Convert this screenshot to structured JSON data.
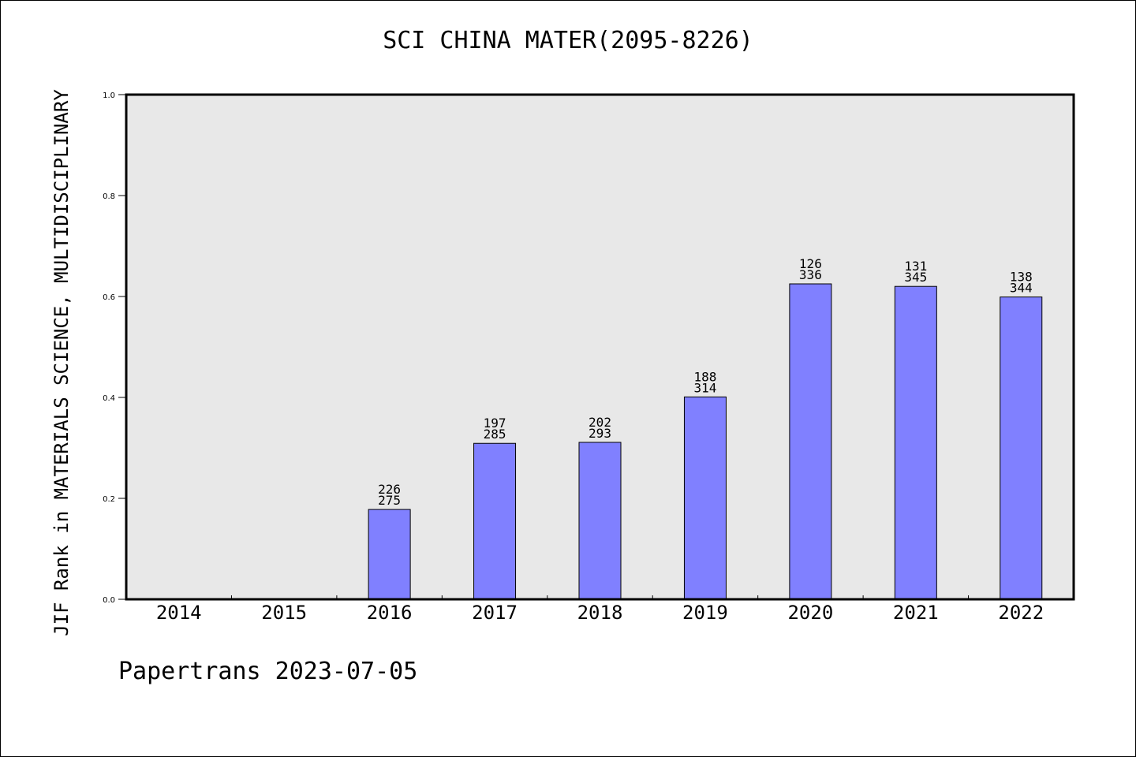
{
  "chart_data": {
    "type": "bar",
    "title": "SCI CHINA MATER(2095-8226)",
    "ylabel": "JIF Rank in MATERIALS SCIENCE, MULTIDISCIPLINARY",
    "xlabel": "",
    "categories": [
      "2014",
      "2015",
      "2016",
      "2017",
      "2018",
      "2019",
      "2020",
      "2021",
      "2022"
    ],
    "values": [
      null,
      null,
      0.178,
      0.309,
      0.311,
      0.401,
      0.625,
      0.62,
      0.599
    ],
    "rank_labels": [
      null,
      null,
      [
        "226",
        "275"
      ],
      [
        "197",
        "285"
      ],
      [
        "202",
        "293"
      ],
      [
        "188",
        "314"
      ],
      [
        "126",
        "336"
      ],
      [
        "131",
        "345"
      ],
      [
        "138",
        "344"
      ]
    ],
    "ylim": [
      0,
      1.0
    ],
    "yticks": [
      "0.0",
      "0.2",
      "0.4",
      "0.6",
      "0.8",
      "1.0"
    ],
    "grid": false,
    "colors": {
      "bar_fill": "#8080ff",
      "bar_stroke": "#000000",
      "plot_background": "#e8e8e8"
    }
  },
  "footer": {
    "text": "Papertrans 2023-07-05"
  }
}
